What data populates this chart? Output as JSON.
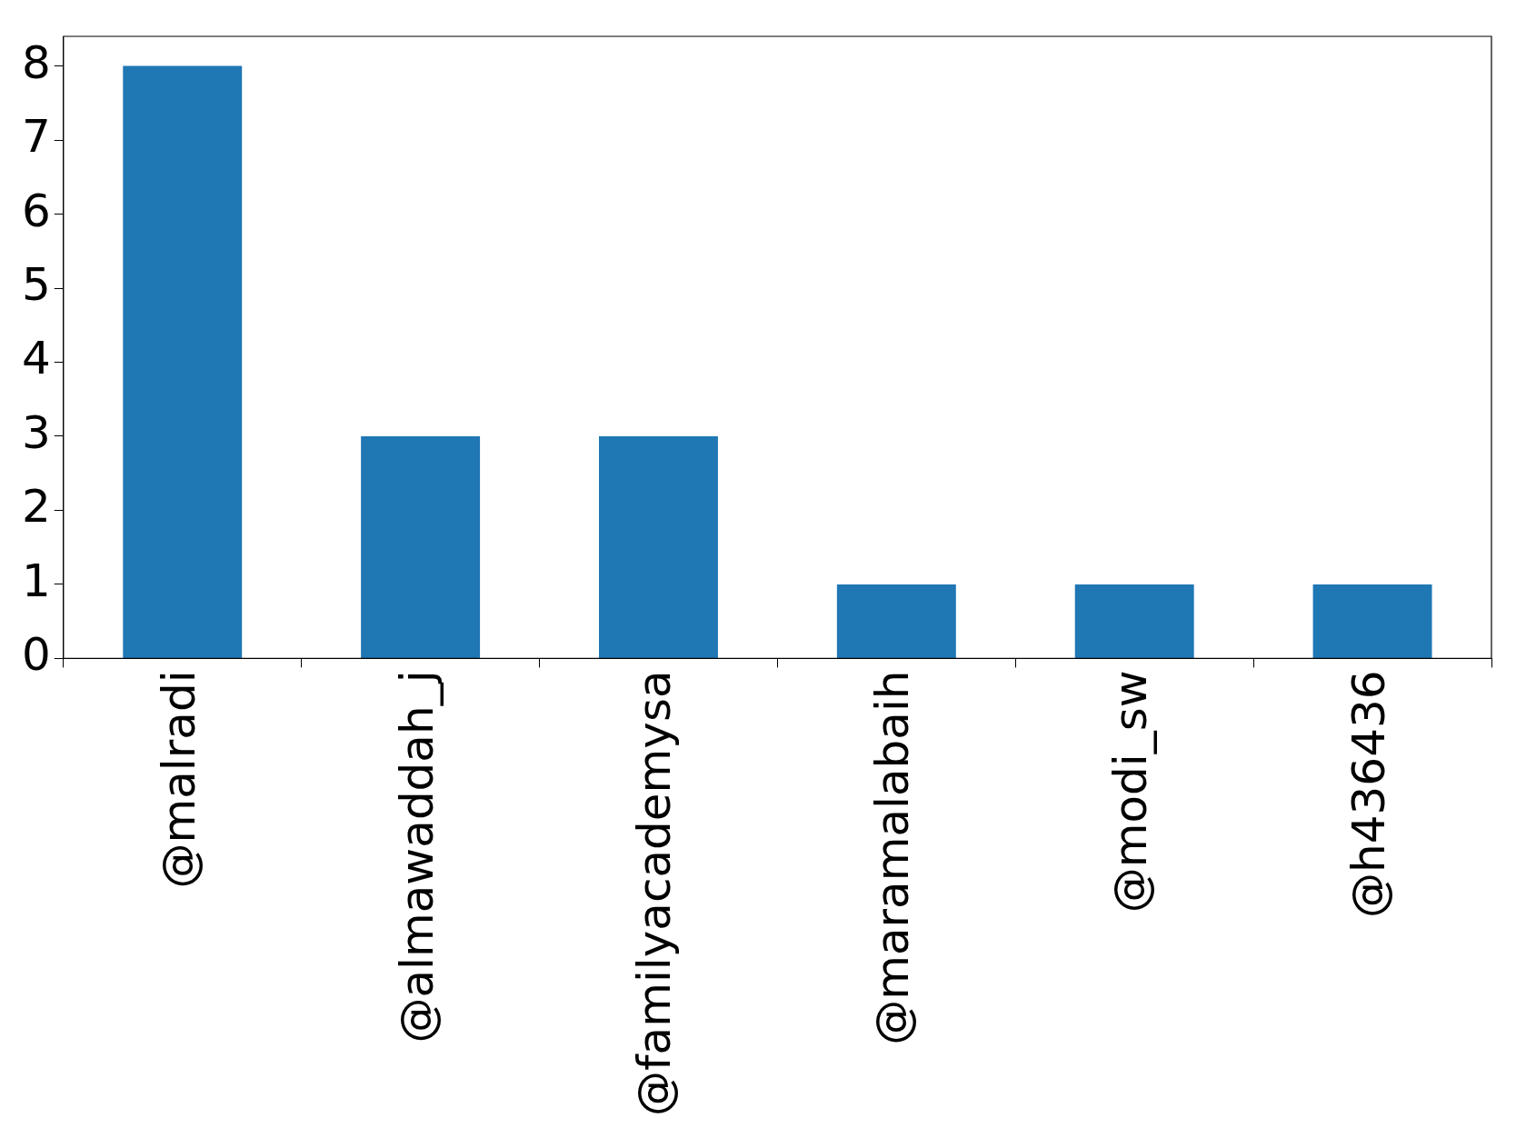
{
  "chart_data": {
    "type": "bar",
    "categories": [
      "@malradi",
      "@almawaddah_j",
      "@familyacademysa",
      "@maramalabaih",
      "@modi_sw",
      "@h436436"
    ],
    "values": [
      8,
      3,
      3,
      1,
      1,
      1
    ],
    "color": "#1f77b4",
    "ylim": [
      0,
      8.4
    ],
    "yticks": [
      0,
      1,
      2,
      3,
      4,
      5,
      6,
      7,
      8
    ],
    "grid": false,
    "legend": false
  }
}
